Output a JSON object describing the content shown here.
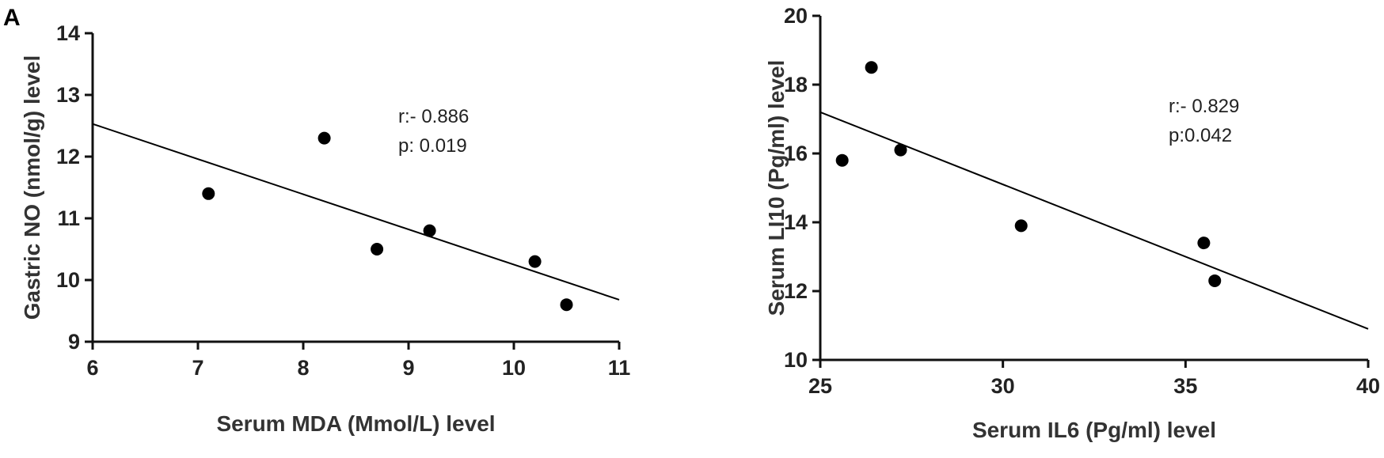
{
  "panel_label": "A",
  "chart_data": [
    {
      "type": "scatter",
      "xlabel": "Serum MDA (Mmol/L) level",
      "ylabel": "Gastric NO (nmol/g) level",
      "xlim": [
        6,
        11
      ],
      "ylim": [
        9,
        14
      ],
      "xticks": [
        6,
        7,
        8,
        9,
        10,
        11
      ],
      "yticks": [
        9,
        10,
        11,
        12,
        13,
        14
      ],
      "points": [
        {
          "x": 7.1,
          "y": 11.4
        },
        {
          "x": 8.2,
          "y": 12.3
        },
        {
          "x": 8.7,
          "y": 10.5
        },
        {
          "x": 9.2,
          "y": 10.8
        },
        {
          "x": 10.2,
          "y": 10.3
        },
        {
          "x": 10.5,
          "y": 9.6
        }
      ],
      "fit_line": {
        "x": [
          6,
          11
        ],
        "y": [
          12.53,
          9.68
        ]
      },
      "annotations": [
        "r:- 0.886",
        "p: 0.019"
      ]
    },
    {
      "type": "scatter",
      "xlabel": "Serum IL6 (Pg/ml) level",
      "ylabel": "Serum LI10 (Pg/ml) level",
      "xlim": [
        25,
        40
      ],
      "ylim": [
        10,
        20
      ],
      "xticks": [
        25,
        30,
        35,
        40
      ],
      "yticks": [
        10,
        12,
        14,
        16,
        18,
        20
      ],
      "points": [
        {
          "x": 25.6,
          "y": 15.8
        },
        {
          "x": 26.4,
          "y": 18.5
        },
        {
          "x": 27.2,
          "y": 16.1
        },
        {
          "x": 30.5,
          "y": 13.9
        },
        {
          "x": 35.5,
          "y": 13.4
        },
        {
          "x": 35.8,
          "y": 12.3
        }
      ],
      "fit_line": {
        "x": [
          25,
          40
        ],
        "y": [
          17.2,
          10.9
        ]
      },
      "annotations": [
        "r:- 0.829",
        "p:0.042"
      ]
    }
  ]
}
